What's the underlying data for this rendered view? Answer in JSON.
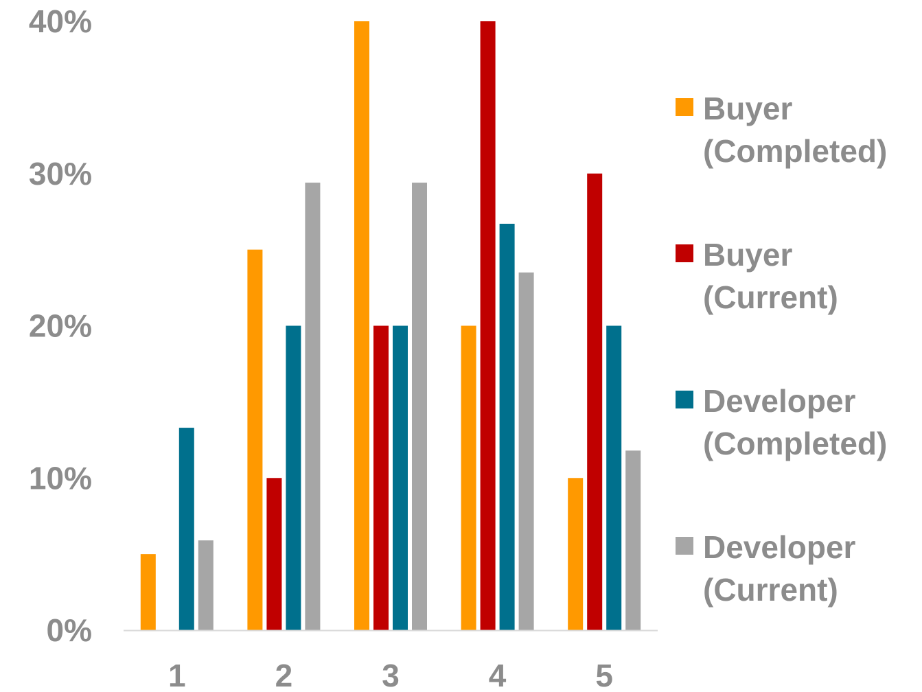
{
  "chart_data": {
    "type": "bar",
    "categories": [
      "1",
      "2",
      "3",
      "4",
      "5"
    ],
    "series": [
      {
        "name": "Buyer (Completed)",
        "name_lines": [
          "Buyer",
          "(Completed)"
        ],
        "color": "#ff9900",
        "values": [
          5,
          25,
          40,
          20,
          10
        ]
      },
      {
        "name": "Buyer (Current)",
        "name_lines": [
          "Buyer",
          "(Current)"
        ],
        "color": "#c00000",
        "values": [
          0,
          10,
          20,
          40,
          30
        ]
      },
      {
        "name": "Developer (Completed)",
        "name_lines": [
          "Developer",
          "(Completed)"
        ],
        "color": "#00708d",
        "values": [
          13.3,
          20,
          20,
          26.7,
          20
        ]
      },
      {
        "name": "Developer (Current)",
        "name_lines": [
          "Developer",
          "(Current)"
        ],
        "color": "#a6a6a6",
        "values": [
          5.9,
          29.4,
          29.4,
          23.5,
          11.8
        ]
      }
    ],
    "y_ticks": [
      "0%",
      "10%",
      "20%",
      "30%",
      "40%"
    ],
    "ylim": [
      0,
      40
    ],
    "title": "",
    "xlabel": "",
    "ylabel": "",
    "grid": false,
    "legend_position": "right",
    "text_color": "#8c8c8c",
    "axis_color": "#d9d9d9"
  }
}
